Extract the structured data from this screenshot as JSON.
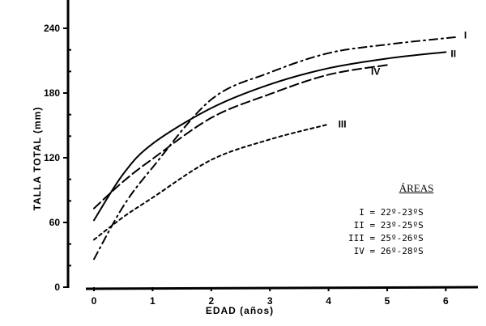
{
  "chart_data": {
    "type": "line",
    "title": "",
    "xlabel": "EDAD (años)",
    "ylabel": "TALLA TOTAL (mm)",
    "xlim": [
      0,
      6.5
    ],
    "ylim": [
      0,
      260
    ],
    "x_ticks": [
      0,
      1,
      2,
      3,
      4,
      5,
      6
    ],
    "y_ticks": [
      0,
      60,
      120,
      180,
      240
    ],
    "y_minor_ticks": [
      20,
      40,
      80,
      100,
      140,
      160,
      200,
      220
    ],
    "grid": false,
    "legend_position": "lower right",
    "series": [
      {
        "name": "I",
        "style": "dash-dot",
        "x": [
          0,
          0.5,
          1,
          2,
          3,
          4,
          5,
          6.2
        ],
        "values": [
          26,
          75,
          111,
          174,
          199,
          217,
          225,
          232
        ]
      },
      {
        "name": "II",
        "style": "solid",
        "x": [
          0,
          0.5,
          1,
          2,
          3,
          4,
          5,
          6
        ],
        "values": [
          62,
          105,
          133,
          166,
          188,
          203,
          212,
          218
        ]
      },
      {
        "name": "III",
        "style": "short-dash",
        "x": [
          0,
          0.5,
          1,
          2,
          3,
          4
        ],
        "values": [
          44,
          65,
          83,
          118,
          137,
          151
        ]
      },
      {
        "name": "IV",
        "style": "long-dash",
        "x": [
          0,
          0.5,
          1,
          2,
          3,
          4,
          5
        ],
        "values": [
          73,
          98,
          119,
          157,
          179,
          197,
          206
        ]
      }
    ],
    "legend": {
      "title": "ÁREAS",
      "entries": [
        {
          "key": "I",
          "label": "22º-23ºS"
        },
        {
          "key": "II",
          "label": "23º-25ºS"
        },
        {
          "key": "III",
          "label": "25º-26ºS"
        },
        {
          "key": "IV",
          "label": "26º-28ºS"
        }
      ]
    }
  },
  "legend_rows": [
    "  I = 22º-23ºS",
    " II = 23º-25ºS",
    "III = 25º-26ºS",
    " IV = 26º-28ºS"
  ]
}
